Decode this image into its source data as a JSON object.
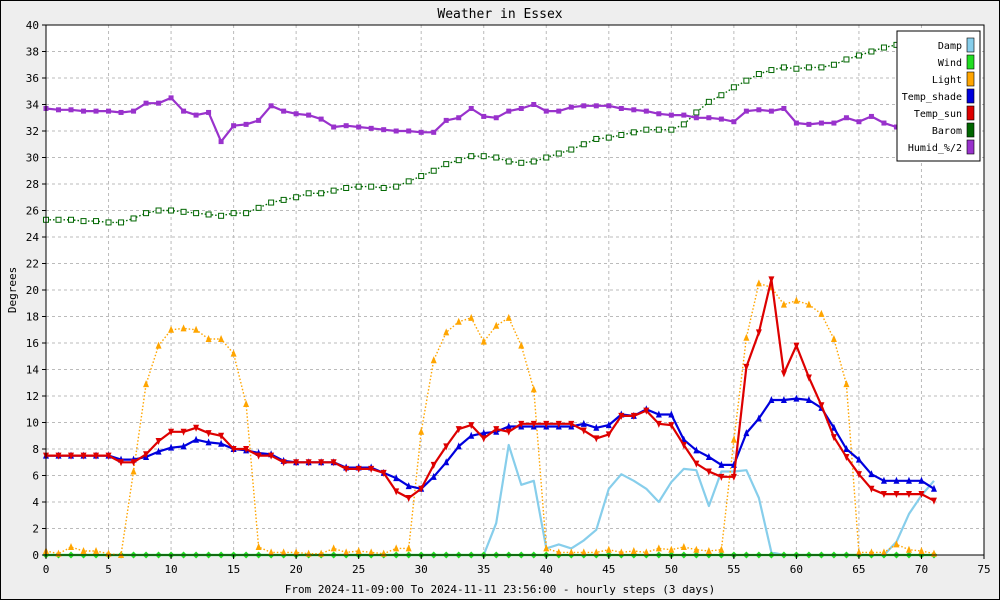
{
  "chart_data": {
    "type": "line",
    "title": "Weather in Essex",
    "xlabel": "From 2024-11-09:00 To 2024-11-11 23:56:00 - hourly steps (3 days)",
    "ylabel": "Degrees",
    "xlim": [
      0,
      75
    ],
    "ylim": [
      0,
      40
    ],
    "xticks": [
      0,
      5,
      10,
      15,
      20,
      25,
      30,
      35,
      40,
      45,
      50,
      55,
      60,
      65,
      70,
      75
    ],
    "yticks": [
      0,
      2,
      4,
      6,
      8,
      10,
      12,
      14,
      16,
      18,
      20,
      22,
      24,
      26,
      28,
      30,
      32,
      34,
      36,
      38,
      40
    ],
    "grid": true,
    "legend_position": "top-right",
    "series": [
      {
        "name": "Damp",
        "color": "#87ceeb",
        "style": "solid",
        "marker": "none",
        "values": [
          0,
          0,
          0,
          0,
          0,
          0,
          0,
          0,
          0,
          0,
          0,
          0,
          0,
          0,
          0,
          0,
          0,
          0,
          0,
          0,
          0,
          0,
          0,
          0,
          0,
          0,
          0,
          0,
          0,
          0,
          0,
          0,
          0,
          0,
          0,
          0,
          2.4,
          8.3,
          5.3,
          5.6,
          0.5,
          0.8,
          0.5,
          1.1,
          1.9,
          5.0,
          6.1,
          5.6,
          5.0,
          4.0,
          5.5,
          6.5,
          6.4,
          3.7,
          6.3,
          6.3,
          6.4,
          4.3,
          0.2,
          0,
          0,
          0,
          0,
          0,
          0,
          0,
          0,
          0,
          1.0,
          3.1,
          4.5,
          5.6
        ]
      },
      {
        "name": "Wind",
        "color": "#22dd22",
        "style": "solid",
        "marker": "diamond",
        "values": [
          0,
          0,
          0,
          0,
          0,
          0,
          0,
          0,
          0,
          0,
          0,
          0,
          0,
          0,
          0,
          0,
          0,
          0,
          0,
          0,
          0,
          0,
          0,
          0,
          0,
          0,
          0,
          0,
          0,
          0,
          0,
          0,
          0,
          0,
          0,
          0,
          0,
          0,
          0,
          0,
          0,
          0,
          0,
          0,
          0,
          0,
          0,
          0,
          0,
          0,
          0,
          0,
          0,
          0,
          0,
          0,
          0,
          0,
          0,
          0,
          0,
          0,
          0,
          0,
          0,
          0,
          0,
          0,
          0,
          0,
          0,
          0
        ]
      },
      {
        "name": "Light",
        "color": "#ffa500",
        "style": "dotted",
        "marker": "triangle-up",
        "values": [
          0.3,
          0.1,
          0.6,
          0.3,
          0.3,
          0.1,
          0,
          6.3,
          12.9,
          15.8,
          17.0,
          17.1,
          17.0,
          16.3,
          16.3,
          15.2,
          11.4,
          0.6,
          0.2,
          0.2,
          0.2,
          0.1,
          0.1,
          0.5,
          0.2,
          0.3,
          0.2,
          0.1,
          0.5,
          0.5,
          9.3,
          14.7,
          16.8,
          17.6,
          17.9,
          16.1,
          17.3,
          17.9,
          15.8,
          12.5,
          0.5,
          0.2,
          0.2,
          0.2,
          0.2,
          0.4,
          0.2,
          0.3,
          0.2,
          0.5,
          0.4,
          0.6,
          0.4,
          0.3,
          0.4,
          8.7,
          16.4,
          20.5,
          20.2,
          18.9,
          19.2,
          18.9,
          18.2,
          16.3,
          12.9,
          0.2,
          0.2,
          0.2,
          0.8,
          0.4,
          0.3,
          0.1
        ]
      },
      {
        "name": "Temp_shade",
        "color": "#0000dd",
        "style": "solid",
        "marker": "triangle-up",
        "values": [
          7.5,
          7.5,
          7.5,
          7.5,
          7.5,
          7.5,
          7.2,
          7.2,
          7.4,
          7.8,
          8.1,
          8.2,
          8.7,
          8.5,
          8.4,
          8.0,
          7.9,
          7.7,
          7.6,
          7.1,
          7.0,
          7.0,
          7.0,
          7.0,
          6.6,
          6.6,
          6.6,
          6.2,
          5.8,
          5.2,
          5.0,
          5.9,
          7.0,
          8.2,
          9.0,
          9.2,
          9.3,
          9.7,
          9.7,
          9.7,
          9.7,
          9.7,
          9.7,
          9.9,
          9.6,
          9.8,
          10.6,
          10.5,
          11.0,
          10.6,
          10.6,
          8.7,
          7.9,
          7.4,
          6.8,
          6.8,
          9.2,
          10.3,
          11.7,
          11.7,
          11.8,
          11.7,
          11.1,
          9.6,
          8.0,
          7.2,
          6.1,
          5.6,
          5.6,
          5.6,
          5.6,
          5.0
        ]
      },
      {
        "name": "Temp_sun",
        "color": "#dd0000",
        "style": "solid",
        "marker": "triangle-down",
        "values": [
          7.5,
          7.5,
          7.5,
          7.5,
          7.5,
          7.5,
          7.0,
          7.0,
          7.6,
          8.6,
          9.3,
          9.3,
          9.6,
          9.2,
          9.0,
          8.0,
          8.0,
          7.5,
          7.5,
          7.0,
          7.0,
          7.0,
          7.0,
          7.0,
          6.5,
          6.5,
          6.5,
          6.2,
          4.8,
          4.3,
          5.0,
          6.8,
          8.2,
          9.5,
          9.8,
          8.8,
          9.5,
          9.3,
          9.9,
          9.9,
          9.9,
          9.9,
          9.9,
          9.4,
          8.8,
          9.1,
          10.5,
          10.5,
          10.9,
          9.9,
          9.8,
          8.3,
          6.9,
          6.3,
          5.9,
          5.9,
          14.2,
          16.8,
          20.8,
          13.7,
          15.8,
          13.4,
          11.3,
          8.9,
          7.4,
          6.1,
          5.0,
          4.6,
          4.6,
          4.6,
          4.6,
          4.1
        ]
      },
      {
        "name": "Barom",
        "color": "#006600",
        "style": "dotted",
        "marker": "square-open",
        "values": [
          25.3,
          25.3,
          25.3,
          25.2,
          25.2,
          25.1,
          25.1,
          25.4,
          25.8,
          26.0,
          26.0,
          25.9,
          25.8,
          25.7,
          25.6,
          25.8,
          25.8,
          26.2,
          26.6,
          26.8,
          27.0,
          27.3,
          27.3,
          27.5,
          27.7,
          27.8,
          27.8,
          27.7,
          27.8,
          28.2,
          28.6,
          29.0,
          29.5,
          29.8,
          30.1,
          30.1,
          30.0,
          29.7,
          29.6,
          29.7,
          30.0,
          30.3,
          30.6,
          31.0,
          31.4,
          31.5,
          31.7,
          31.9,
          32.1,
          32.1,
          32.1,
          32.5,
          33.4,
          34.2,
          34.7,
          35.3,
          35.8,
          36.3,
          36.6,
          36.8,
          36.7,
          36.8,
          36.8,
          37.0,
          37.4,
          37.7,
          38.0,
          38.3,
          38.5,
          38.4,
          38.2,
          38.2
        ]
      },
      {
        "name": "Humid_%/2",
        "color": "#9932cc",
        "style": "solid",
        "marker": "square",
        "values": [
          33.7,
          33.6,
          33.6,
          33.5,
          33.5,
          33.5,
          33.4,
          33.5,
          34.1,
          34.1,
          34.5,
          33.5,
          33.2,
          33.4,
          31.2,
          32.4,
          32.5,
          32.8,
          33.9,
          33.5,
          33.3,
          33.2,
          32.9,
          32.3,
          32.4,
          32.3,
          32.2,
          32.1,
          32.0,
          32.0,
          31.9,
          31.9,
          32.8,
          33.0,
          33.7,
          33.1,
          33.0,
          33.5,
          33.7,
          34.0,
          33.5,
          33.5,
          33.8,
          33.9,
          33.9,
          33.9,
          33.7,
          33.6,
          33.5,
          33.3,
          33.2,
          33.2,
          33.0,
          33.0,
          32.9,
          32.7,
          33.5,
          33.6,
          33.5,
          33.7,
          32.6,
          32.5,
          32.6,
          32.6,
          33.0,
          32.7,
          33.1,
          32.6,
          32.3,
          32.3,
          32.2,
          32.2
        ]
      }
    ]
  }
}
